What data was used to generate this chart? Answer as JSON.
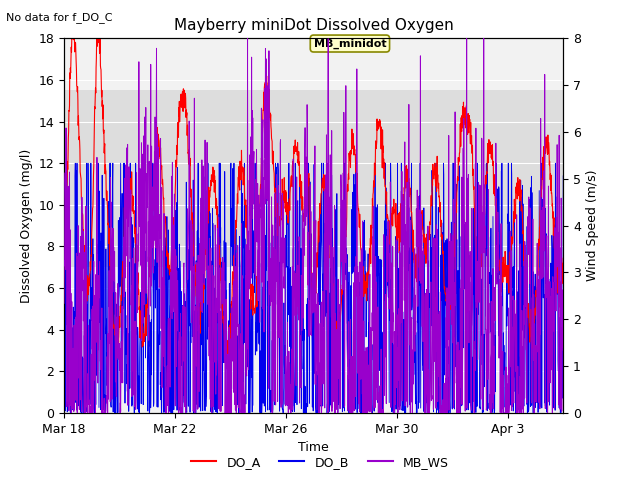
{
  "title": "Mayberry miniDot Dissolved Oxygen",
  "subtitle": "No data for f_DO_C",
  "xlabel": "Time",
  "ylabel_left": "Dissolved Oxygen (mg/l)",
  "ylabel_right": "Wind Speed (m/s)",
  "ylim_left": [
    0,
    18
  ],
  "ylim_right": [
    0.0,
    8.0
  ],
  "yticks_left": [
    0,
    2,
    4,
    6,
    8,
    10,
    12,
    14,
    16,
    18
  ],
  "yticks_right": [
    0.0,
    1.0,
    2.0,
    3.0,
    4.0,
    5.0,
    6.0,
    7.0,
    8.0
  ],
  "xtick_labels": [
    "Mar 18",
    "Mar 22",
    "Mar 26",
    "Mar 30",
    "Apr 3"
  ],
  "xtick_positions": [
    0,
    4,
    8,
    12,
    16
  ],
  "legend_entries": [
    "DO_A",
    "DO_B",
    "MB_WS"
  ],
  "color_DO_A": "#ff0000",
  "color_DO_B": "#0000ee",
  "color_MB_WS": "#9900cc",
  "annotation_label": "MB_minidot",
  "annotation_box_facecolor": "#ffffcc",
  "annotation_box_edgecolor": "#888800",
  "background_color": "#ffffff",
  "plot_bg_color": "#f2f2f2",
  "band_facecolor": "#dddddd",
  "band_ymin": 7.0,
  "band_ymax": 15.5,
  "xlim": [
    0,
    18
  ],
  "n_days": 18,
  "seed": 42
}
